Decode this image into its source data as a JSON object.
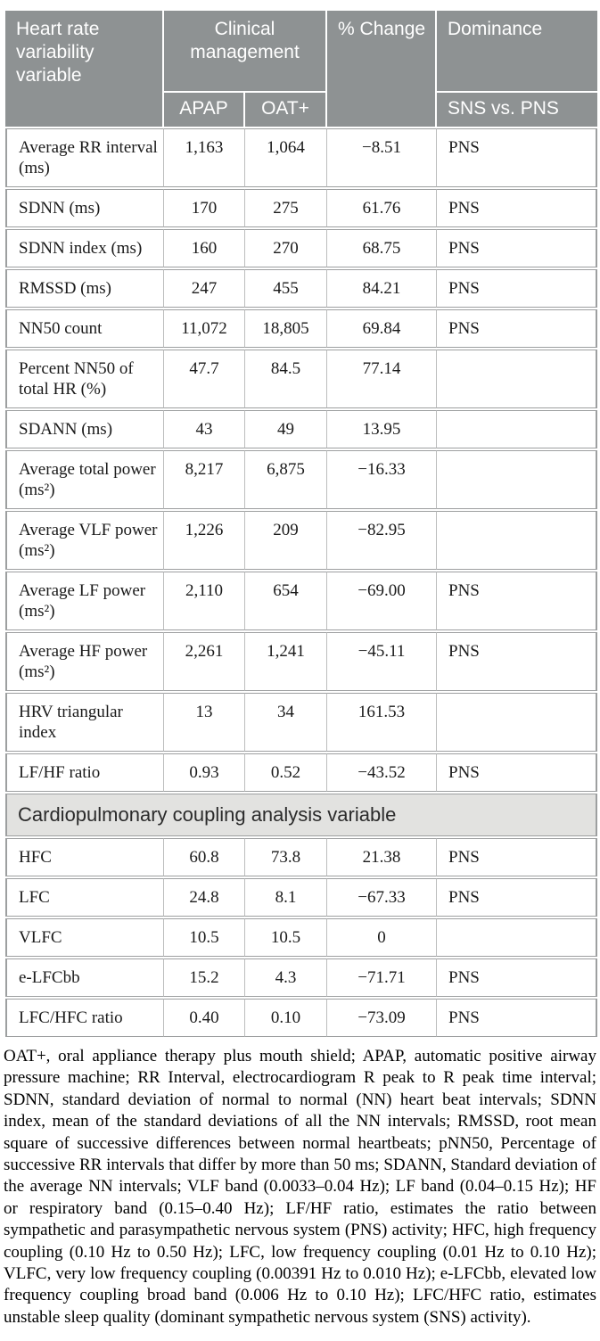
{
  "colors": {
    "header_bg": "#8e9293",
    "header_fg": "#ffffff",
    "band_bg": "#e2e2e0",
    "band_fg": "#2b2b2b"
  },
  "table": {
    "header": {
      "variable_col": "Heart rate variability variable",
      "group_col": "Clinical management",
      "sub_apap": "APAP",
      "sub_oat": "OAT+",
      "pct_change_col": "% Change",
      "dominance_col": "Dominance",
      "dominance_sub": "SNS vs. PNS"
    },
    "hrv_rows": [
      [
        "Average RR interval (ms)",
        "1,163",
        "1,064",
        "−8.51",
        "PNS"
      ],
      [
        "SDNN (ms)",
        "170",
        "275",
        "61.76",
        "PNS"
      ],
      [
        "SDNN index (ms)",
        "160",
        "270",
        "68.75",
        "PNS"
      ],
      [
        "RMSSD (ms)",
        "247",
        "455",
        "84.21",
        "PNS"
      ],
      [
        "NN50 count",
        "11,072",
        "18,805",
        "69.84",
        "PNS"
      ],
      [
        "Percent NN50 of total HR (%)",
        "47.7",
        "84.5",
        "77.14",
        ""
      ],
      [
        "SDANN (ms)",
        "43",
        "49",
        "13.95",
        ""
      ],
      [
        "Average total power (ms²)",
        "8,217",
        "6,875",
        "−16.33",
        ""
      ],
      [
        "Average VLF power (ms²)",
        "1,226",
        "209",
        "−82.95",
        ""
      ],
      [
        "Average LF power (ms²)",
        "2,110",
        "654",
        "−69.00",
        "PNS"
      ],
      [
        "Average HF power (ms²)",
        "2,261",
        "1,241",
        "−45.11",
        "PNS"
      ],
      [
        "HRV triangular index",
        "13",
        "34",
        "161.53",
        ""
      ],
      [
        "LF/HF ratio",
        "0.93",
        "0.52",
        "−43.52",
        "PNS"
      ]
    ],
    "section_band": "Cardiopulmonary coupling analysis variable",
    "cpc_rows": [
      [
        "HFC",
        "60.8",
        "73.8",
        "21.38",
        "PNS"
      ],
      [
        "LFC",
        "24.8",
        "8.1",
        "−67.33",
        "PNS"
      ],
      [
        "VLFC",
        "10.5",
        "10.5",
        "0",
        ""
      ],
      [
        "e-LFCbb",
        "15.2",
        "4.3",
        "−71.71",
        "PNS"
      ],
      [
        "LFC/HFC ratio",
        "0.40",
        "0.10",
        "−73.09",
        "PNS"
      ]
    ]
  },
  "footnote": "OAT+, oral appliance therapy plus mouth shield; APAP, automatic positive airway pressure machine; RR Interval, electrocardiogram R peak to R peak time interval; SDNN, standard deviation of normal to normal (NN) heart beat intervals; SDNN index, mean of the standard deviations of all the NN intervals; RMSSD, root mean square of successive differences between normal heartbeats; pNN50, Percentage of successive RR intervals that differ by more than 50 ms; SDANN, Standard deviation of the average NN intervals; VLF band (0.0033–0.04 Hz); LF band (0.04–0.15 Hz); HF or respiratory band (0.15–0.40 Hz); LF/HF ratio, estimates the ratio between sympathetic and parasympathetic nervous system (PNS) activity; HFC, high frequency coupling (0.10 Hz to 0.50 Hz); LFC, low frequency coupling (0.01 Hz to 0.10 Hz); VLFC, very low frequency coupling (0.00391 Hz to 0.010 Hz); e-LFCbb, elevated low frequency coupling broad band (0.006 Hz to 0.10 Hz); LFC/HFC ratio, estimates unstable sleep quality (dominant sympathetic nervous system (SNS) activity)."
}
